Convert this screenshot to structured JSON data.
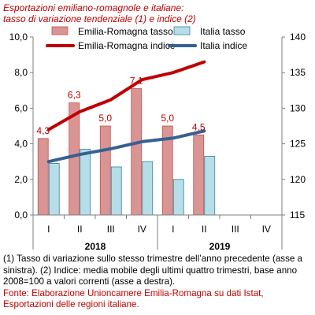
{
  "chart_data": {
    "type": "bar+line",
    "title_lines": [
      "Esportazioni emiliano-romagnole e italiane:",
      "tasso di variazione tendenziale (1) e indice (2)"
    ],
    "categories": [
      "I",
      "II",
      "III",
      "IV",
      "I",
      "II",
      "III",
      "IV"
    ],
    "groups": [
      {
        "label": "2018",
        "categories": [
          "I",
          "II",
          "III",
          "IV"
        ]
      },
      {
        "label": "2019",
        "categories": [
          "I",
          "II",
          "III",
          "IV"
        ]
      }
    ],
    "left_axis": {
      "min": 0,
      "max": 10,
      "ticks": [
        "0,0",
        "2,0",
        "4,0",
        "6,0",
        "8,0",
        "10,0"
      ]
    },
    "right_axis": {
      "min": 115,
      "max": 140,
      "ticks": [
        "115",
        "120",
        "125",
        "130",
        "135",
        "140"
      ]
    },
    "bar_series": [
      {
        "name": "Emilia-Romagna tasso",
        "color": "#d99594",
        "edge": "#c0504d",
        "values": [
          4.3,
          6.3,
          5.0,
          7.1,
          5.0,
          4.5,
          null,
          null
        ],
        "labels": [
          "4,3",
          "6,3",
          "5,0",
          "7,1",
          "5,0",
          "4,5",
          "",
          ""
        ]
      },
      {
        "name": "Italia tasso",
        "color": "#b7dde8",
        "edge": "#31859c",
        "values": [
          2.9,
          3.7,
          2.7,
          3.0,
          2.0,
          3.3,
          null,
          null
        ]
      }
    ],
    "line_series": [
      {
        "name": "Emilia-Romagna indice",
        "color": "#c00000",
        "axis": "right",
        "values": [
          127.0,
          129.5,
          131.2,
          134.0,
          135.0,
          136.5,
          null,
          null
        ]
      },
      {
        "name": "Italia indice",
        "color": "#376092",
        "axis": "right",
        "values": [
          122.5,
          123.5,
          124.3,
          125.3,
          125.8,
          126.8,
          null,
          null
        ]
      }
    ],
    "grid": false,
    "legend_position": "top"
  },
  "notes": {
    "line1": "(1) Tasso di variazione sullo stesso trimestre dell’anno precedente (asse a sinistra). (2) Indice: media mobile degli ultimi quattro trimestri, base anno 2008=100 a valori correnti (asse a destra).",
    "source": "Fonte: Elaborazione Unioncamere Emilia-Romagna su dati Istat, Esportazioni delle regioni italiane."
  }
}
